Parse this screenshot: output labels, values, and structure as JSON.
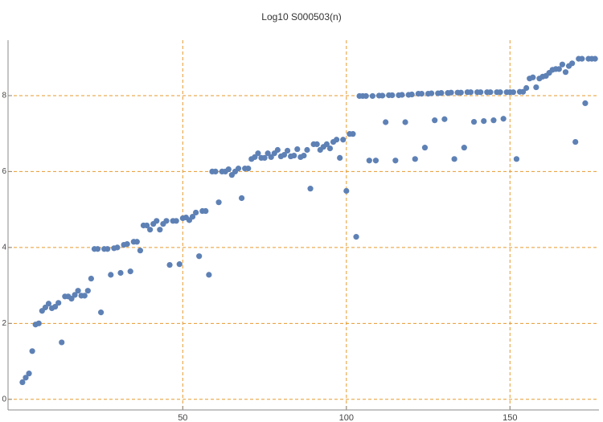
{
  "chart_data": {
    "type": "scatter",
    "title": "Log10 S000503(n)",
    "color": "#5e81b5",
    "grid": true,
    "xlim": [
      -3.4,
      177.2
    ],
    "ylim": [
      -0.28,
      9.46
    ],
    "xticks": [
      50,
      100,
      150
    ],
    "yticks": [
      0,
      2,
      4,
      6,
      8
    ],
    "x": [
      1,
      2,
      3,
      4,
      5,
      6,
      7,
      8,
      9,
      10,
      11,
      12,
      13,
      14,
      15,
      16,
      17,
      18,
      19,
      20,
      21,
      22,
      23,
      24,
      25,
      26,
      27,
      28,
      29,
      30,
      31,
      32,
      33,
      34,
      35,
      36,
      37,
      38,
      39,
      40,
      41,
      42,
      43,
      44,
      45,
      46,
      47,
      48,
      49,
      50,
      51,
      52,
      53,
      54,
      55,
      56,
      57,
      58,
      59,
      60,
      61,
      62,
      63,
      64,
      65,
      66,
      67,
      68,
      69,
      70,
      71,
      72,
      73,
      74,
      75,
      76,
      77,
      78,
      79,
      80,
      81,
      82,
      83,
      84,
      85,
      86,
      87,
      88,
      89,
      90,
      91,
      92,
      93,
      94,
      95,
      96,
      97,
      98,
      99,
      100,
      101,
      102,
      103,
      104,
      105,
      106,
      107,
      108,
      109,
      110,
      111,
      112,
      113,
      114,
      115,
      116,
      117,
      118,
      119,
      120,
      121,
      122,
      123,
      124,
      125,
      126,
      127,
      128,
      129,
      130,
      131,
      132,
      133,
      134,
      135,
      136,
      137,
      138,
      139,
      140,
      141,
      142,
      143,
      144,
      145,
      146,
      147,
      148,
      149,
      150,
      151,
      152,
      153,
      154,
      155,
      156,
      157,
      158,
      159,
      160,
      161,
      162,
      163,
      164,
      165,
      166,
      167,
      168,
      169,
      170,
      171,
      172,
      173,
      174,
      175,
      176
    ],
    "values": [
      0.45,
      0.57,
      0.68,
      1.27,
      1.97,
      2.0,
      2.33,
      2.42,
      2.52,
      2.4,
      2.44,
      2.54,
      1.5,
      2.71,
      2.71,
      2.65,
      2.75,
      2.86,
      2.73,
      2.73,
      2.86,
      3.18,
      3.96,
      3.96,
      2.29,
      3.96,
      3.96,
      3.28,
      3.98,
      4.0,
      3.33,
      4.07,
      4.09,
      3.37,
      4.15,
      4.15,
      3.92,
      4.58,
      4.58,
      4.47,
      4.62,
      4.7,
      4.47,
      4.62,
      4.7,
      3.54,
      4.7,
      4.7,
      3.56,
      4.77,
      4.79,
      4.72,
      4.81,
      4.92,
      3.77,
      4.96,
      4.96,
      3.28,
      6.0,
      6.0,
      5.19,
      6.0,
      6.0,
      6.06,
      5.91,
      6.0,
      6.08,
      5.3,
      6.08,
      6.08,
      6.33,
      6.38,
      6.48,
      6.36,
      6.36,
      6.48,
      6.38,
      6.48,
      6.57,
      6.4,
      6.44,
      6.55,
      6.4,
      6.42,
      6.59,
      6.38,
      6.42,
      6.57,
      5.55,
      6.72,
      6.72,
      6.57,
      6.65,
      6.72,
      6.61,
      6.78,
      6.84,
      6.36,
      6.84,
      5.49,
      6.99,
      6.99,
      4.28,
      7.99,
      7.99,
      7.99,
      6.29,
      7.99,
      6.29,
      8.0,
      8.0,
      7.3,
      8.01,
      8.01,
      6.29,
      8.01,
      8.02,
      7.3,
      8.02,
      8.03,
      6.33,
      8.05,
      8.05,
      6.63,
      8.05,
      8.06,
      7.35,
      8.06,
      8.07,
      7.38,
      8.07,
      8.08,
      6.33,
      8.08,
      8.08,
      6.63,
      8.09,
      8.09,
      7.31,
      8.09,
      8.09,
      7.33,
      8.09,
      8.09,
      7.35,
      8.09,
      8.09,
      7.39,
      8.09,
      8.09,
      8.09,
      6.33,
      8.1,
      8.1,
      8.2,
      8.45,
      8.48,
      8.22,
      8.45,
      8.5,
      8.52,
      8.6,
      8.68,
      8.7,
      8.7,
      8.82,
      8.62,
      8.78,
      8.85,
      6.78,
      8.97,
      8.97,
      7.8,
      8.97,
      8.97,
      8.97
    ]
  }
}
